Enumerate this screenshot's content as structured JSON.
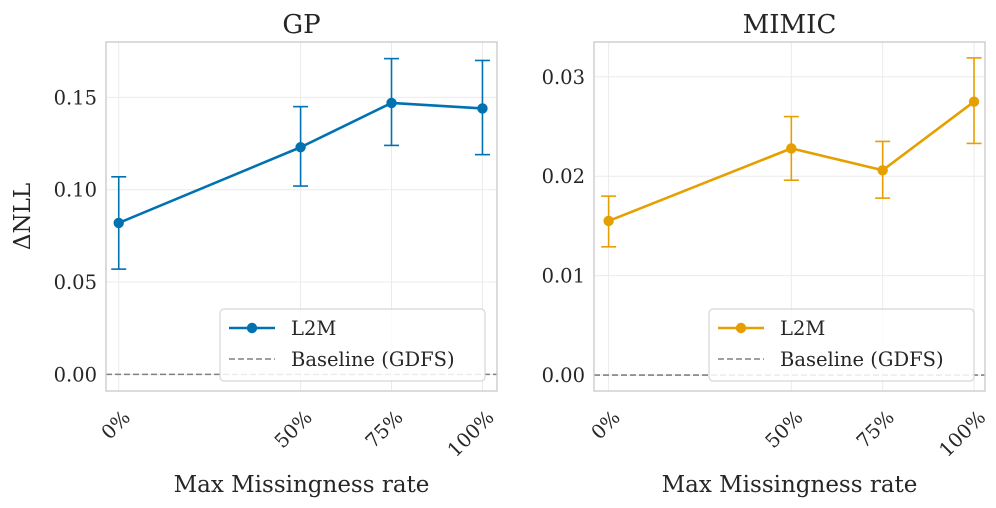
{
  "chart_data": [
    {
      "type": "line",
      "title": "GP",
      "xlabel": "Max Missingness rate",
      "ylabel": "ΔNLL",
      "x": [
        0,
        50,
        75,
        100
      ],
      "xtick_labels": [
        "0%",
        "50%",
        "75%",
        "100%"
      ],
      "xlim": [
        -3.5,
        104
      ],
      "ylim": [
        -0.009,
        0.18
      ],
      "yticks": [
        0.0,
        0.05,
        0.1,
        0.15
      ],
      "ytick_labels": [
        "0.00",
        "0.05",
        "0.10",
        "0.15"
      ],
      "grid": true,
      "legend_position": "bottom-right",
      "series": [
        {
          "name": "L2M",
          "color": "#0072b2",
          "values": [
            0.082,
            0.123,
            0.147,
            0.144
          ],
          "err_low": [
            0.057,
            0.102,
            0.124,
            0.119
          ],
          "err_high": [
            0.107,
            0.145,
            0.171,
            0.17
          ]
        }
      ],
      "baseline": {
        "name": "Baseline (GDFS)",
        "value": 0.0,
        "color": "#808080"
      }
    },
    {
      "type": "line",
      "title": "MIMIC",
      "xlabel": "Max Missingness rate",
      "ylabel": "",
      "x": [
        0,
        50,
        75,
        100
      ],
      "xtick_labels": [
        "0%",
        "50%",
        "75%",
        "100%"
      ],
      "xlim": [
        -4,
        103
      ],
      "ylim": [
        -0.0016,
        0.0335
      ],
      "yticks": [
        0.0,
        0.01,
        0.02,
        0.03
      ],
      "ytick_labels": [
        "0.00",
        "0.01",
        "0.02",
        "0.03"
      ],
      "grid": true,
      "legend_position": "bottom-right",
      "series": [
        {
          "name": "L2M",
          "color": "#e69f00",
          "values": [
            0.0155,
            0.0228,
            0.0206,
            0.0275
          ],
          "err_low": [
            0.0129,
            0.0196,
            0.0178,
            0.0233
          ],
          "err_high": [
            0.018,
            0.026,
            0.0235,
            0.0319
          ]
        }
      ],
      "baseline": {
        "name": "Baseline (GDFS)",
        "value": 0.0,
        "color": "#808080"
      }
    }
  ]
}
